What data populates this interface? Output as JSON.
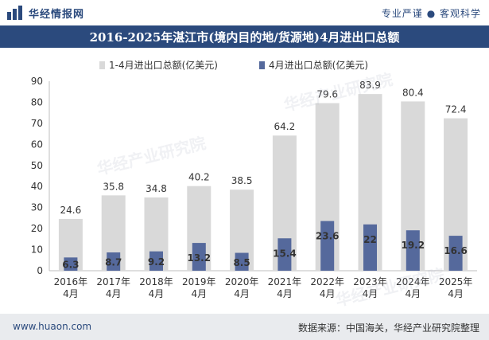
{
  "header": {
    "brand": "华经情报网",
    "tagline": "专业严谨 ● 客观科学"
  },
  "title": "2016-2025年湛江市(境内目的地/货源地)4月进出口总额",
  "footer": {
    "website": "www.huaon.com",
    "source": "数据来源：中国海关，华经产业研究院整理"
  },
  "watermark": "华经产业研究院",
  "colors": {
    "brand": "#2b4a7d",
    "series1": "#d9d9d9",
    "series2": "#55699c"
  },
  "chart_data": {
    "type": "bar",
    "categories": [
      "2016年\n4月",
      "2017年\n4月",
      "2018年\n4月",
      "2019年\n4月",
      "2020年\n4月",
      "2021年\n4月",
      "2022年\n4月",
      "2023年\n4月",
      "2024年\n4月",
      "2025年\n4月"
    ],
    "series": [
      {
        "name": "1-4月进出口总额(亿美元)",
        "values": [
          24.6,
          35.8,
          34.8,
          40.2,
          38.5,
          64.2,
          79.6,
          83.9,
          80.4,
          72.4
        ],
        "color": "#d9d9d9"
      },
      {
        "name": "4月进出口总额(亿美元)",
        "values": [
          6.3,
          8.7,
          9.2,
          13.2,
          8.5,
          15.4,
          23.6,
          22,
          19.2,
          16.6
        ],
        "color": "#55699c"
      }
    ],
    "y_ticks": [
      0,
      10,
      20,
      30,
      40,
      50,
      60,
      70,
      80,
      90
    ],
    "ylim": [
      0,
      90
    ],
    "legend": "top",
    "grid": false
  }
}
